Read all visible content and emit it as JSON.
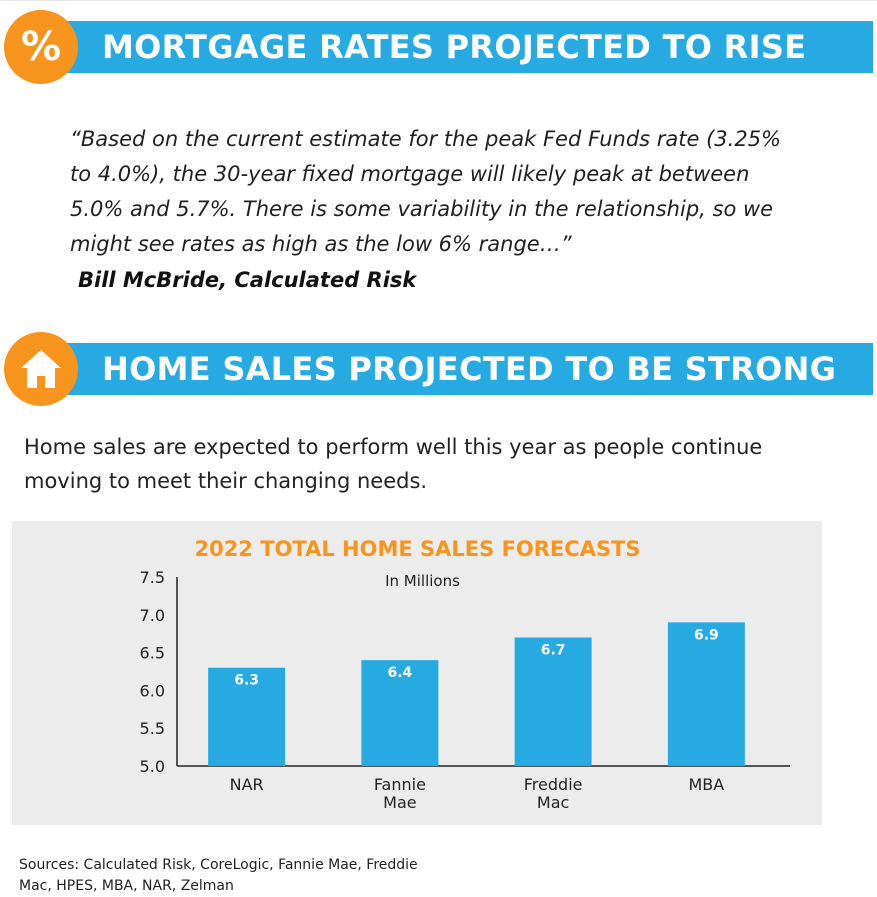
{
  "section_rates": {
    "badge_glyph": "%",
    "title": "MORTGAGE RATES PROJECTED TO RISE",
    "quote": "“Based on the current estimate for the peak Fed Funds rate (3.25% to 4.0%), the 30-year fixed mortgage will likely peak at between 5.0% and 5.7%. There is some variability in the relationship, so we might see rates as high as the low 6% range…”",
    "attribution": "Bill McBride, Calculated Risk",
    "icon": "percent-icon"
  },
  "section_sales": {
    "title": "HOME SALES PROJECTED TO BE STRONG",
    "intro": "Home sales are expected to perform well this year as people continue moving to meet their changing needs.",
    "icon": "house-icon"
  },
  "colors": {
    "banner_blue": "#27aae2",
    "badge_orange": "#f7941d",
    "bar_blue": "#27aae2",
    "panel_gray": "#ececec"
  },
  "chart_data": {
    "type": "bar",
    "title": "2022 TOTAL HOME SALES FORECASTS",
    "subtitle": "In Millions",
    "categories": [
      "NAR",
      "Fannie\nMae",
      "Freddie\nMac",
      "MBA"
    ],
    "values": [
      6.3,
      6.4,
      6.7,
      6.9
    ],
    "data_labels": [
      "6.3",
      "6.4",
      "6.7",
      "6.9"
    ],
    "ylim": [
      5.0,
      7.5
    ],
    "yticks": [
      "5.0",
      "5.5",
      "6.0",
      "6.5",
      "7.0",
      "7.5"
    ],
    "grid": false
  },
  "sources": "Sources: Calculated Risk, CoreLogic, Fannie Mae, Freddie Mac, HPES, MBA, NAR, Zelman"
}
